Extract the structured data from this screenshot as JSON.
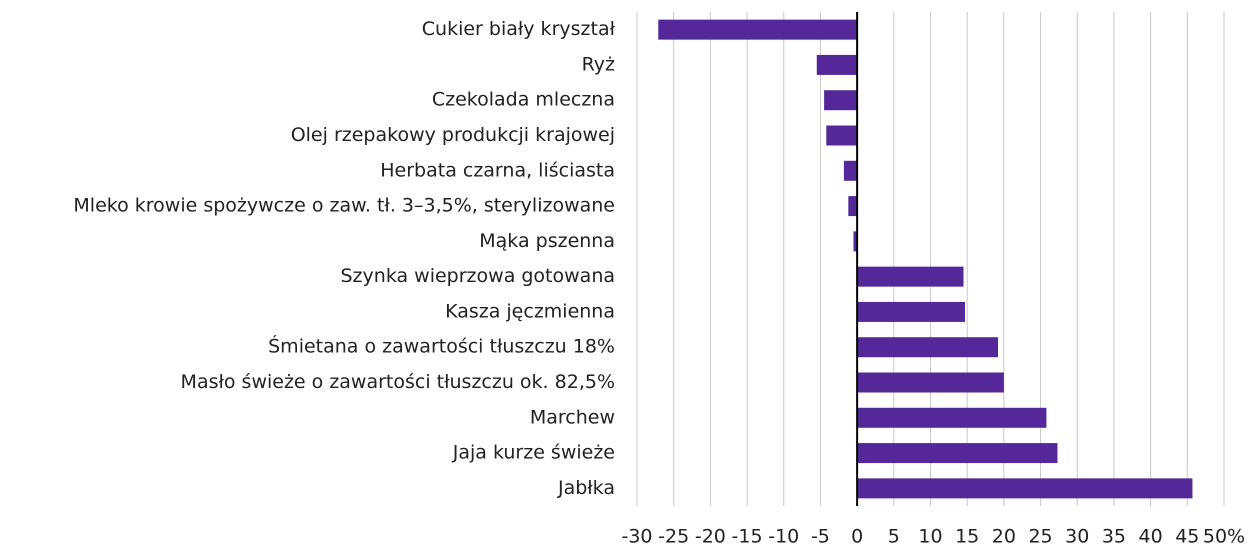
{
  "chart_data": {
    "type": "hbar",
    "categories": [
      "Cukier biały kryształ",
      "Ryż",
      "Czekolada mleczna",
      "Olej rzepakowy produkcji krajowej",
      "Herbata czarna, liściasta",
      "Mleko krowie spożywcze o zaw. tł. 3–3,5%, sterylizowane",
      "Mąka pszenna",
      "Szynka wieprzowa gotowana",
      "Kasza jęczmienna",
      "Śmietana o zawartości tłuszczu 18%",
      "Masło świeże o zawartości tłuszczu ok. 82,5%",
      "Marchew",
      "Jaja kurze świeże",
      "Jabłka"
    ],
    "values": [
      -27.1,
      -5.5,
      -4.5,
      -4.2,
      -1.8,
      -1.2,
      -0.5,
      14.5,
      14.7,
      19.2,
      20.0,
      25.8,
      27.3,
      45.7
    ],
    "color": "#55289a",
    "xlim": [
      -30,
      50
    ],
    "xticks": [
      -30,
      -25,
      -20,
      -15,
      -10,
      -5,
      0,
      5,
      10,
      15,
      20,
      25,
      30,
      35,
      40,
      45,
      {
        "value": 50,
        "label": "50%"
      }
    ],
    "grid": true
  }
}
